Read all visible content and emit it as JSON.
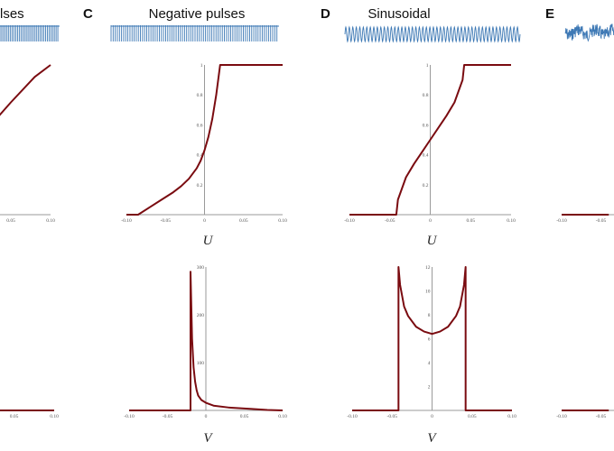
{
  "figure": {
    "panels": [
      {
        "letter": "",
        "title": "lses",
        "title_visible": "lses"
      },
      {
        "letter": "C",
        "title": "Negative pulses"
      },
      {
        "letter": "D",
        "title": "Sinusoidal"
      },
      {
        "letter": "E",
        "title": ""
      }
    ],
    "u_axis_label": "U",
    "v_axis_label": "V",
    "colors": {
      "curve": "#7a0b10",
      "signal": "#3e79b5",
      "axis": "#9a9a9a"
    }
  },
  "chart_data": [
    {
      "id": "B-partial-U",
      "type": "line",
      "title": "",
      "xlabel": "",
      "xticks": [
        "0.05",
        "0.10"
      ],
      "xlim": [
        -0.1,
        0.1
      ],
      "ylim": [
        0,
        1
      ],
      "series": [
        {
          "x": [
            -0.1,
            -0.07,
            -0.04,
            -0.01,
            0.02,
            0.05,
            0.08,
            0.1
          ],
          "y": [
            0.0,
            0.12,
            0.25,
            0.4,
            0.57,
            0.75,
            0.92,
            1.0
          ]
        }
      ]
    },
    {
      "id": "C-U",
      "type": "line",
      "title": "Negative pulses",
      "xlabel": "U",
      "xticks": [
        "-0.10",
        "-0.05",
        "0",
        "0.05",
        "0.10"
      ],
      "yticks": [
        "0.2",
        "0.4",
        "0.6",
        "0.8",
        "1"
      ],
      "xlim": [
        -0.1,
        0.1
      ],
      "ylim": [
        0,
        1
      ],
      "series": [
        {
          "x": [
            -0.1,
            -0.085,
            -0.07,
            -0.055,
            -0.04,
            -0.03,
            -0.02,
            -0.01,
            -0.005,
            0.0,
            0.005,
            0.01,
            0.015,
            0.02,
            0.1
          ],
          "y": [
            0.0,
            0.0,
            0.05,
            0.1,
            0.15,
            0.19,
            0.24,
            0.31,
            0.36,
            0.43,
            0.52,
            0.64,
            0.8,
            1.0,
            1.0
          ]
        }
      ]
    },
    {
      "id": "D-U",
      "type": "line",
      "title": "Sinusoidal",
      "xlabel": "U",
      "xticks": [
        "-0.10",
        "-0.05",
        "0",
        "0.05",
        "0.10"
      ],
      "yticks": [
        "0.2",
        "0.4",
        "0.6",
        "0.8",
        "1"
      ],
      "xlim": [
        -0.1,
        0.1
      ],
      "ylim": [
        0,
        1
      ],
      "series": [
        {
          "x": [
            -0.1,
            -0.042,
            -0.04,
            -0.03,
            -0.02,
            -0.01,
            0.0,
            0.01,
            0.02,
            0.03,
            0.04,
            0.042,
            0.1
          ],
          "y": [
            0.0,
            0.0,
            0.1,
            0.25,
            0.34,
            0.42,
            0.5,
            0.58,
            0.66,
            0.75,
            0.9,
            1.0,
            1.0
          ]
        }
      ]
    },
    {
      "id": "E-partial-U",
      "type": "line",
      "title": "",
      "xlabel": "",
      "xticks": [
        "-0.10",
        "-0.05"
      ],
      "xlim": [
        -0.1,
        0.1
      ],
      "ylim": [
        0,
        1
      ],
      "series": [
        {
          "x": [
            -0.1,
            -0.04
          ],
          "y": [
            0.0,
            0.0
          ]
        }
      ]
    },
    {
      "id": "B-partial-V",
      "type": "line",
      "title": "",
      "xlabel": "",
      "xticks": [
        "0.05",
        "0.10"
      ],
      "xlim": [
        -0.1,
        0.1
      ],
      "series": [
        {
          "x": [
            -0.1,
            0.1
          ],
          "y": [
            0.0,
            0.0
          ]
        }
      ]
    },
    {
      "id": "C-V",
      "type": "line",
      "title": "",
      "xlabel": "V",
      "xticks": [
        "-0.10",
        "-0.05",
        "0",
        "0.05",
        "0.10"
      ],
      "yticks": [
        "100",
        "200",
        "300"
      ],
      "xlim": [
        -0.1,
        0.1
      ],
      "ylim": [
        0,
        300
      ],
      "series": [
        {
          "x": [
            -0.1,
            -0.02,
            -0.02,
            -0.018,
            -0.016,
            -0.014,
            -0.012,
            -0.01,
            -0.006,
            0.0,
            0.01,
            0.03,
            0.06,
            0.08,
            0.1
          ],
          "y": [
            0,
            0,
            290,
            150,
            90,
            60,
            42,
            31,
            22,
            16,
            10,
            6,
            3,
            1,
            0
          ]
        }
      ]
    },
    {
      "id": "D-V",
      "type": "line",
      "title": "",
      "xlabel": "V",
      "xticks": [
        "-0.10",
        "-0.05",
        "0",
        "0.05",
        "0.10"
      ],
      "yticks": [
        "2",
        "4",
        "6",
        "8",
        "10",
        "12"
      ],
      "xlim": [
        -0.1,
        0.1
      ],
      "ylim": [
        0,
        12
      ],
      "series": [
        {
          "x": [
            -0.1,
            -0.042,
            -0.042,
            -0.04,
            -0.035,
            -0.03,
            -0.02,
            -0.01,
            0.0,
            0.01,
            0.02,
            0.03,
            0.035,
            0.04,
            0.042,
            0.042,
            0.1
          ],
          "y": [
            0,
            0,
            12,
            10.5,
            8.7,
            7.9,
            7.0,
            6.6,
            6.4,
            6.6,
            7.0,
            7.9,
            8.7,
            10.5,
            12,
            0,
            0
          ]
        }
      ]
    },
    {
      "id": "E-partial-V",
      "type": "line",
      "title": "",
      "xlabel": "",
      "xticks": [
        "-0.10",
        "-0.05"
      ],
      "xlim": [
        -0.1,
        0.1
      ],
      "series": [
        {
          "x": [
            -0.1,
            -0.04
          ],
          "y": [
            0.0,
            0.0
          ]
        }
      ]
    }
  ]
}
